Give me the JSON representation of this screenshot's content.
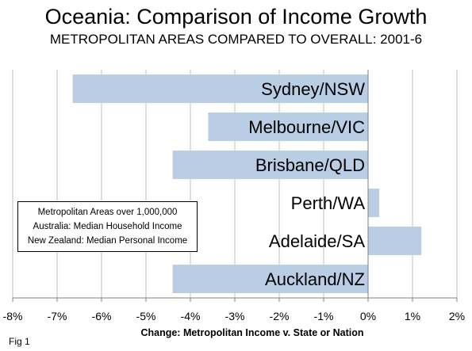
{
  "title": "Oceania: Comparison of Income Growth",
  "subtitle": "METROPOLITAN AREAS COMPARED TO OVERALL: 2001-6",
  "note_lines": [
    "Metropolitan Areas over 1,000,000",
    "Australia: Median Household Income",
    "New Zealand: Median Personal Income"
  ],
  "figure_label": "Fig 1",
  "chart_data": {
    "type": "bar",
    "orientation": "horizontal",
    "categories": [
      "Sydney/NSW",
      "Melbourne/VIC",
      "Brisbane/QLD",
      "Perth/WA",
      "Adelaide/SA",
      "Auckland/NZ"
    ],
    "values": [
      -6.65,
      -3.6,
      -4.4,
      0.25,
      1.2,
      -4.4
    ],
    "xlabel": "Change: Metropolitan Income v. State or Nation",
    "xlim": [
      -8,
      2
    ],
    "ticks": [
      -8,
      -7,
      -6,
      -5,
      -4,
      -3,
      -2,
      -1,
      0,
      1,
      2
    ],
    "tick_labels": [
      "-8%",
      "-7%",
      "-6%",
      "-5%",
      "-4%",
      "-3%",
      "-2%",
      "-1%",
      "0%",
      "1%",
      "2%"
    ],
    "grid": true,
    "bar_color": "#b9cde5"
  }
}
